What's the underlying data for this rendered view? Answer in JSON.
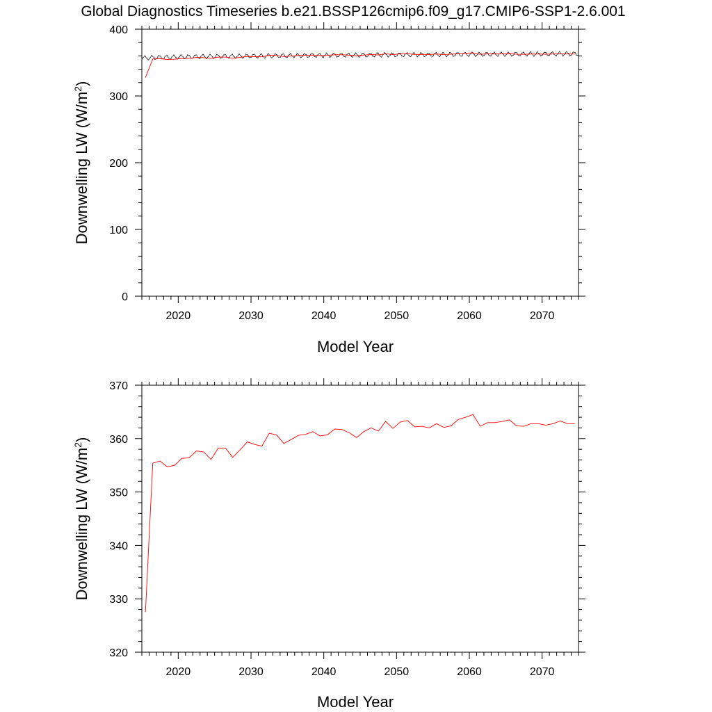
{
  "title": "Global Diagnostics Timeseries b.e21.BSSP126cmip6.f09_g17.CMIP6-SSP1-2.6.001",
  "colors": {
    "annual": "#ff0000",
    "monthly": "#000000"
  },
  "chart_data": [
    {
      "type": "line",
      "xlabel": "Model Year",
      "ylabel": "Downwelling LW (W/m2)",
      "ylabel_main": "Downwelling LW (W/m",
      "ylabel_sup": "2",
      "ylabel_end": ")",
      "xlim": [
        2015,
        2075
      ],
      "ylim": [
        0,
        400
      ],
      "xticks": [
        2020,
        2030,
        2040,
        2050,
        2060,
        2070
      ],
      "yticks": [
        0,
        100,
        200,
        300,
        400
      ],
      "grid": false,
      "series": [
        {
          "color": "#000000",
          "style": "monthly",
          "x_start": 2015.04,
          "x_step": 0.08333,
          "baseline_start": 356.5,
          "baseline_end": 363.2,
          "seasonal_amplitude": 2.8
        },
        {
          "color": "#ff0000",
          "x": [
            2015.5,
            2016.5,
            2017.5,
            2018.5,
            2019.5,
            2020.5,
            2021.5,
            2022.5,
            2023.5,
            2024.5,
            2025.5,
            2026.5,
            2027.5,
            2028.5,
            2029.5,
            2030.5,
            2031.5,
            2032.5,
            2033.5,
            2034.5,
            2035.5,
            2036.5,
            2037.5,
            2038.5,
            2039.5,
            2040.5,
            2041.5,
            2042.5,
            2043.5,
            2044.5,
            2045.5,
            2046.5,
            2047.5,
            2048.5,
            2049.5,
            2050.5,
            2051.5,
            2052.5,
            2053.5,
            2054.5,
            2055.5,
            2056.5,
            2057.5,
            2058.5,
            2059.5,
            2060.5,
            2061.5,
            2062.5,
            2063.5,
            2064.5,
            2065.5,
            2066.5,
            2067.5,
            2068.5,
            2069.5,
            2070.5,
            2071.5,
            2072.5,
            2073.5,
            2074.5
          ],
          "values": [
            327.5,
            355.4,
            355.8,
            354.7,
            355.0,
            356.3,
            356.4,
            357.7,
            357.5,
            356.1,
            358.2,
            358.2,
            356.5,
            357.9,
            359.4,
            358.9,
            358.6,
            361.0,
            360.7,
            359.1,
            359.8,
            360.6,
            360.8,
            361.3,
            360.5,
            360.7,
            361.8,
            361.7,
            361.1,
            360.2,
            361.3,
            362.0,
            361.4,
            363.2,
            361.9,
            363.1,
            363.4,
            362.2,
            362.3,
            362.0,
            362.8,
            362.1,
            362.4,
            363.6,
            364.0,
            364.5,
            362.3,
            363.0,
            363.0,
            363.2,
            363.5,
            362.4,
            362.3,
            362.8,
            362.8,
            362.5,
            362.8,
            363.3,
            362.8,
            362.8
          ]
        }
      ]
    },
    {
      "type": "line",
      "xlabel": "Model Year",
      "ylabel": "Downwelling LW (W/m2)",
      "ylabel_main": "Downwelling LW (W/m",
      "ylabel_sup": "2",
      "ylabel_end": ")",
      "xlim": [
        2015,
        2075
      ],
      "ylim": [
        320,
        370
      ],
      "xticks": [
        2020,
        2030,
        2040,
        2050,
        2060,
        2070
      ],
      "yticks": [
        320,
        330,
        340,
        350,
        360,
        370
      ],
      "grid": false,
      "series": [
        {
          "color": "#ff0000",
          "x": [
            2015.5,
            2016.5,
            2017.5,
            2018.5,
            2019.5,
            2020.5,
            2021.5,
            2022.5,
            2023.5,
            2024.5,
            2025.5,
            2026.5,
            2027.5,
            2028.5,
            2029.5,
            2030.5,
            2031.5,
            2032.5,
            2033.5,
            2034.5,
            2035.5,
            2036.5,
            2037.5,
            2038.5,
            2039.5,
            2040.5,
            2041.5,
            2042.5,
            2043.5,
            2044.5,
            2045.5,
            2046.5,
            2047.5,
            2048.5,
            2049.5,
            2050.5,
            2051.5,
            2052.5,
            2053.5,
            2054.5,
            2055.5,
            2056.5,
            2057.5,
            2058.5,
            2059.5,
            2060.5,
            2061.5,
            2062.5,
            2063.5,
            2064.5,
            2065.5,
            2066.5,
            2067.5,
            2068.5,
            2069.5,
            2070.5,
            2071.5,
            2072.5,
            2073.5,
            2074.5
          ],
          "values": [
            327.5,
            355.4,
            355.8,
            354.7,
            355.0,
            356.3,
            356.4,
            357.7,
            357.5,
            356.1,
            358.2,
            358.2,
            356.5,
            357.9,
            359.4,
            358.9,
            358.6,
            361.0,
            360.7,
            359.1,
            359.8,
            360.6,
            360.8,
            361.3,
            360.5,
            360.7,
            361.8,
            361.7,
            361.1,
            360.2,
            361.3,
            362.0,
            361.4,
            363.2,
            361.9,
            363.1,
            363.4,
            362.2,
            362.3,
            362.0,
            362.8,
            362.1,
            362.4,
            363.6,
            364.0,
            364.5,
            362.3,
            363.0,
            363.0,
            363.2,
            363.5,
            362.4,
            362.3,
            362.8,
            362.8,
            362.5,
            362.8,
            363.3,
            362.8,
            362.8
          ]
        }
      ]
    }
  ]
}
